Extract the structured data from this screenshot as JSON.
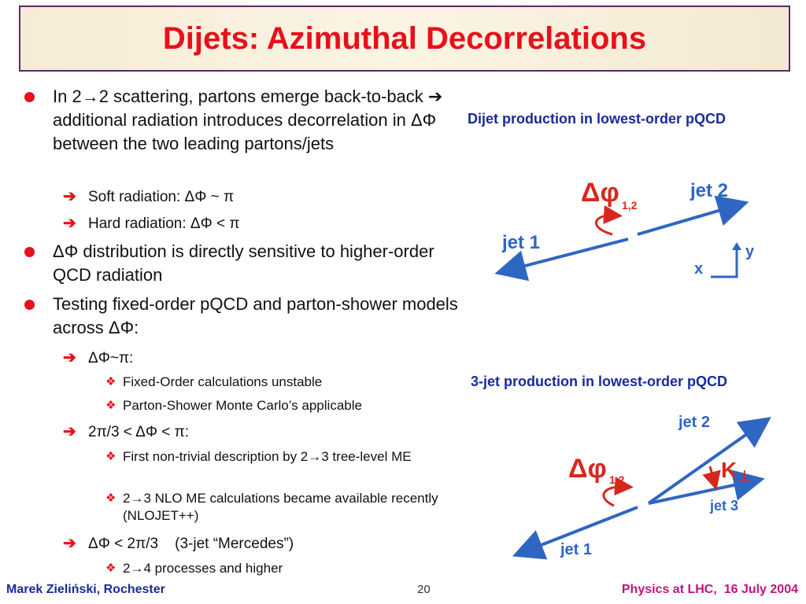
{
  "title": "Dijets: Azimuthal Decorrelations",
  "bullets": {
    "b1": "In 2→2 scattering, partons emerge back-to-back ➔ additional radiation introduces decorrelation in ΔΦ between the two leading partons/jets",
    "b1_s1": "Soft radiation: ΔΦ ~ π",
    "b1_s2": "Hard radiation: ΔΦ < π",
    "b2": "ΔΦ distribution is directly sensitive to higher-order QCD radiation",
    "b3": "Testing fixed-order pQCD and parton-shower models across ΔΦ:",
    "b3_s1": "ΔΦ~π:",
    "b3_s1_a": "Fixed-Order calculations unstable",
    "b3_s1_b": "Parton-Shower Monte Carlo’s applicable",
    "b3_s2": "2π/3 < ΔΦ < π:",
    "b3_s2_a": "First non-trivial description by 2→3 tree-level ME",
    "b3_s2_b": "2→3 NLO ME calculations became available recently (NLOJET++)",
    "b3_s3": "ΔΦ < 2π/3    (3-jet “Mercedes”)",
    "b3_s3_a": "2→4 processes and higher"
  },
  "diagram1": {
    "caption": "Dijet production in lowest-order pQCD",
    "jet1": "jet 1",
    "jet2": "jet 2",
    "delta_phi": "Δφ",
    "delta_phi_sub": "1,2",
    "axis_x": "x",
    "axis_y": "y"
  },
  "diagram2": {
    "caption": "3-jet production in lowest-order pQCD",
    "jet1": "jet 1",
    "jet2": "jet 2",
    "jet3": "jet 3",
    "delta_phi": "Δφ",
    "delta_phi_sub": "1,2",
    "kt": "K",
    "kt_sub": "⊥"
  },
  "footer": {
    "author": "Marek Zieliński, Rochester",
    "page": "20",
    "event": "Physics at LHC,  16 July 2004"
  },
  "colors": {
    "title": "#e8101a",
    "bullet": "#e8101a",
    "caption": "#1a2a9a",
    "arrow": "#2f66c4",
    "annotation": "#d8281e",
    "footer_right": "#c0147a"
  }
}
